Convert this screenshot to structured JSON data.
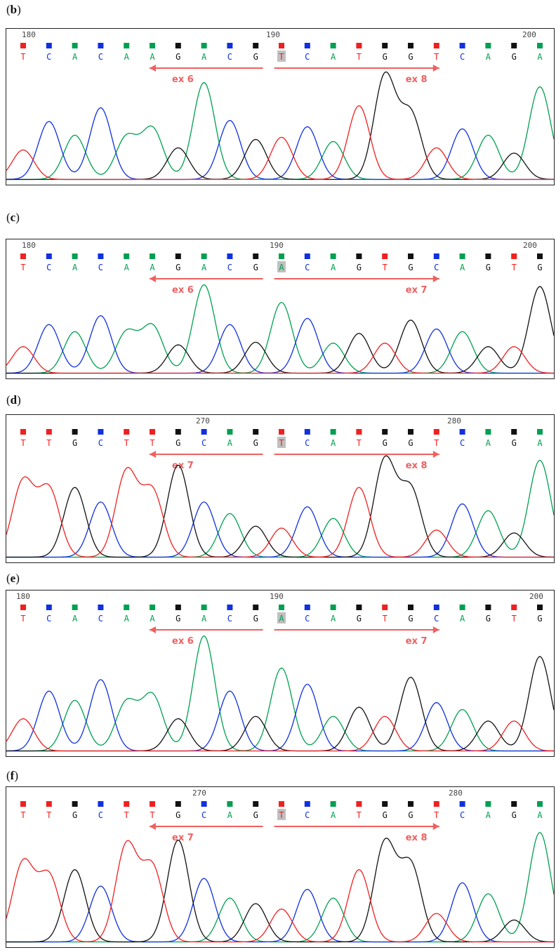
{
  "colors": {
    "A": "#00a050",
    "C": "#1030e0",
    "G": "#111111",
    "T": "#f02020",
    "arrow": "#f06060",
    "highlight": "#c0c0c0"
  },
  "panels": [
    {
      "label": "b",
      "positions": [
        "180",
        "190",
        "200"
      ],
      "sequence": [
        "T",
        "C",
        "A",
        "C",
        "A",
        "A",
        "G",
        "A",
        "C",
        "G",
        "T",
        "C",
        "A",
        "T",
        "G",
        "G",
        "T",
        "C",
        "A",
        "G",
        "A"
      ],
      "highlight_index": 10,
      "arrows": [
        {
          "direction": "left",
          "label": "ex 6"
        },
        {
          "direction": "right",
          "label": "ex 8"
        }
      ]
    },
    {
      "label": "c",
      "positions": [
        "180",
        "190",
        "200"
      ],
      "sequence": [
        "T",
        "C",
        "A",
        "C",
        "A",
        "A",
        "G",
        "A",
        "C",
        "G",
        "A",
        "C",
        "A",
        "G",
        "T",
        "G",
        "C",
        "A",
        "G",
        "T",
        "G"
      ],
      "highlight_index": 10,
      "arrows": [
        {
          "direction": "left",
          "label": "ex 6"
        },
        {
          "direction": "right",
          "label": "ex 7"
        }
      ]
    },
    {
      "label": "d",
      "positions": [
        "270",
        "280"
      ],
      "sequence": [
        "T",
        "T",
        "G",
        "C",
        "T",
        "T",
        "G",
        "C",
        "A",
        "G",
        "T",
        "C",
        "A",
        "T",
        "G",
        "G",
        "T",
        "C",
        "A",
        "G",
        "A"
      ],
      "highlight_index": 10,
      "arrows": [
        {
          "direction": "left",
          "label": "ex 7"
        },
        {
          "direction": "right",
          "label": "ex 8"
        }
      ]
    },
    {
      "label": "e",
      "positions": [
        "180",
        "190",
        "200"
      ],
      "sequence": [
        "T",
        "C",
        "A",
        "C",
        "A",
        "A",
        "G",
        "A",
        "C",
        "G",
        "A",
        "C",
        "A",
        "G",
        "T",
        "G",
        "C",
        "A",
        "G",
        "T",
        "G"
      ],
      "highlight_index": 10,
      "arrows": [
        {
          "direction": "left",
          "label": "ex 6"
        },
        {
          "direction": "right",
          "label": "ex 7"
        }
      ]
    },
    {
      "label": "f",
      "positions": [
        "270",
        "280"
      ],
      "sequence": [
        "T",
        "T",
        "G",
        "C",
        "T",
        "T",
        "G",
        "C",
        "A",
        "G",
        "T",
        "C",
        "A",
        "T",
        "G",
        "G",
        "T",
        "C",
        "A",
        "G",
        "A"
      ],
      "highlight_index": 10,
      "arrows": [
        {
          "direction": "left",
          "label": "ex 7"
        },
        {
          "direction": "right",
          "label": "ex 8"
        }
      ]
    }
  ]
}
